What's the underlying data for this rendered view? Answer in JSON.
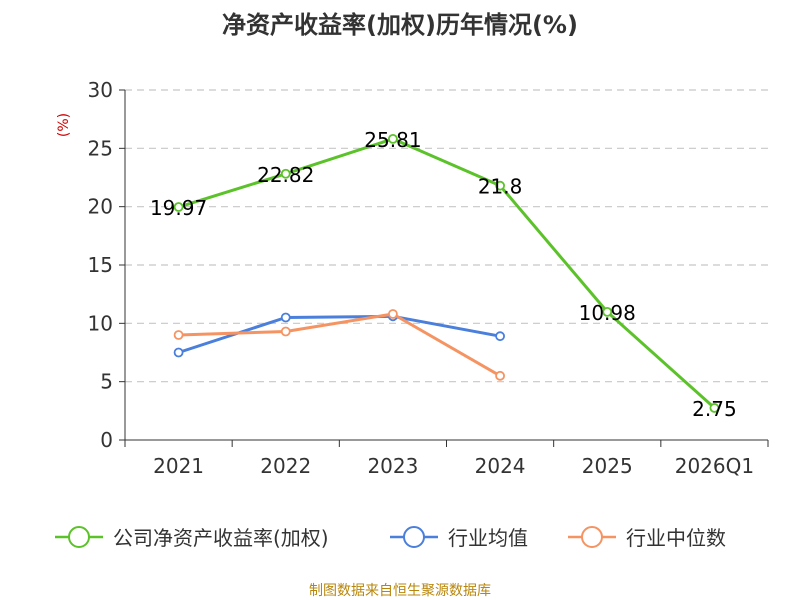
{
  "chart_data": {
    "type": "line",
    "title": "净资产收益率(加权)历年情况(%)",
    "ylabel": "(%)",
    "ylim": [
      0,
      30
    ],
    "yticks": [
      0,
      5,
      10,
      15,
      20,
      25,
      30
    ],
    "categories": [
      "2021",
      "2022",
      "2023",
      "2024",
      "2025",
      "2026Q1"
    ],
    "series": [
      {
        "name": "公司净资产收益率(加权)",
        "color": "#5cc22a",
        "values": [
          19.97,
          22.82,
          25.81,
          21.8,
          10.98,
          2.75
        ],
        "labels": [
          "19.97",
          "22.82",
          "25.81",
          "21.8",
          "10.98",
          "2.75"
        ],
        "show_labels": true
      },
      {
        "name": "行业均值",
        "color": "#4a7fdc",
        "values": [
          7.5,
          10.5,
          10.6,
          8.9,
          null,
          null
        ],
        "show_labels": false
      },
      {
        "name": "行业中位数",
        "color": "#f59462",
        "values": [
          9.0,
          9.3,
          10.8,
          5.5,
          null,
          null
        ],
        "show_labels": false
      }
    ],
    "grid": true,
    "legend": "bottom",
    "source": "制图数据来自恒生聚源数据库"
  }
}
